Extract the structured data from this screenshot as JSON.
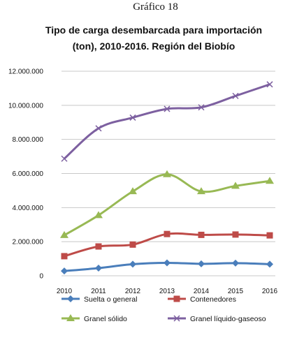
{
  "caption": "Gráfico 18",
  "chart_data": {
    "type": "line",
    "title_line1": "Tipo de carga desembarcada para importación",
    "title_line2": "(ton), 2010-2016. Región del Biobío",
    "categories": [
      "2010",
      "2011",
      "2012",
      "2013",
      "2014",
      "2015",
      "2016"
    ],
    "ylim": [
      0,
      12000000
    ],
    "yticks": [
      0,
      2000000,
      4000000,
      6000000,
      8000000,
      10000000,
      12000000
    ],
    "ytick_labels": [
      "0",
      "2.000.000",
      "4.000.000",
      "6.000.000",
      "8.000.000",
      "10.000.000",
      "12.000.000"
    ],
    "grid": true,
    "legend_position": "bottom",
    "series": [
      {
        "name": "Suelta o general",
        "color": "#4a7ebb",
        "marker": "diamond",
        "values": [
          280000,
          450000,
          680000,
          760000,
          700000,
          740000,
          680000
        ]
      },
      {
        "name": "Contenedores",
        "color": "#be4b48",
        "marker": "square",
        "values": [
          1150000,
          1720000,
          1830000,
          2450000,
          2400000,
          2420000,
          2370000
        ]
      },
      {
        "name": "Granel sólido",
        "color": "#98b954",
        "marker": "triangle",
        "values": [
          2380000,
          3550000,
          4950000,
          5950000,
          4950000,
          5270000,
          5560000
        ]
      },
      {
        "name": "Granel líquido-gaseoso",
        "color": "#7d60a0",
        "marker": "x",
        "values": [
          6870000,
          8650000,
          9280000,
          9790000,
          9880000,
          10550000,
          11230000
        ]
      }
    ]
  }
}
